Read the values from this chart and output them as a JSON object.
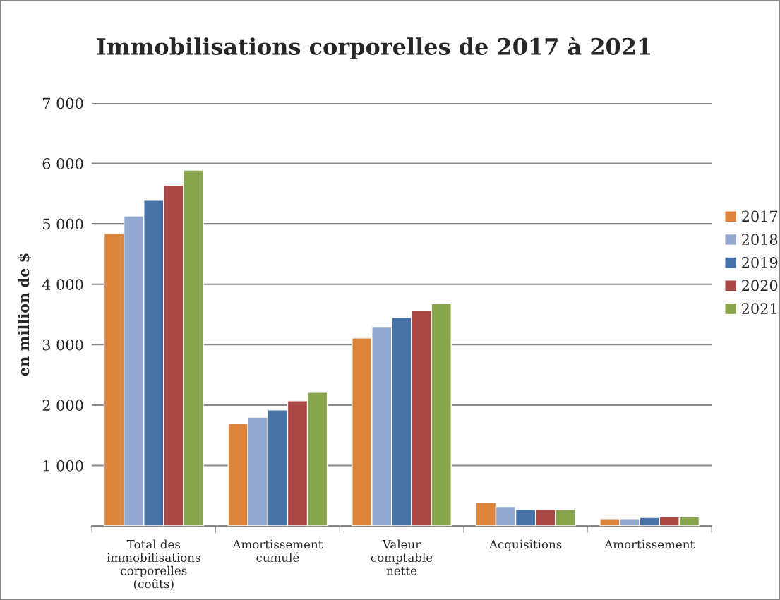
{
  "chart_data": {
    "type": "bar",
    "title": "Immobilisations corporelles de 2017 à 2021",
    "ylabel": "en million de $",
    "categories": [
      "Total des\nimmobilisations\ncorporelles\n(coûts)",
      "Amortissement\ncumulé",
      "Valeur\ncomptable\nnette",
      "Acquisitions",
      "Amortissement"
    ],
    "series": [
      {
        "name": "2017",
        "color": "#dd843c",
        "values": [
          4840,
          1700,
          3110,
          390,
          120
        ]
      },
      {
        "name": "2018",
        "color": "#93a9cf",
        "values": [
          5130,
          1800,
          3300,
          320,
          120
        ]
      },
      {
        "name": "2019",
        "color": "#4672a8",
        "values": [
          5390,
          1920,
          3450,
          270,
          140
        ]
      },
      {
        "name": "2020",
        "color": "#a94744",
        "values": [
          5640,
          2070,
          3570,
          270,
          150
        ]
      },
      {
        "name": "2021",
        "color": "#89a54e",
        "values": [
          5890,
          2210,
          3680,
          270,
          150
        ]
      }
    ],
    "ylim": [
      0,
      7000
    ],
    "yticks": [
      {
        "value": 0,
        "label": null
      },
      {
        "value": 1000,
        "label": "1 000"
      },
      {
        "value": 2000,
        "label": "2 000"
      },
      {
        "value": 3000,
        "label": "3 000"
      },
      {
        "value": 4000,
        "label": "4 000"
      },
      {
        "value": 5000,
        "label": "5 000"
      },
      {
        "value": 6000,
        "label": "6 000"
      },
      {
        "value": 7000,
        "label": "7 000"
      }
    ],
    "grid": "y",
    "legend": "right"
  }
}
